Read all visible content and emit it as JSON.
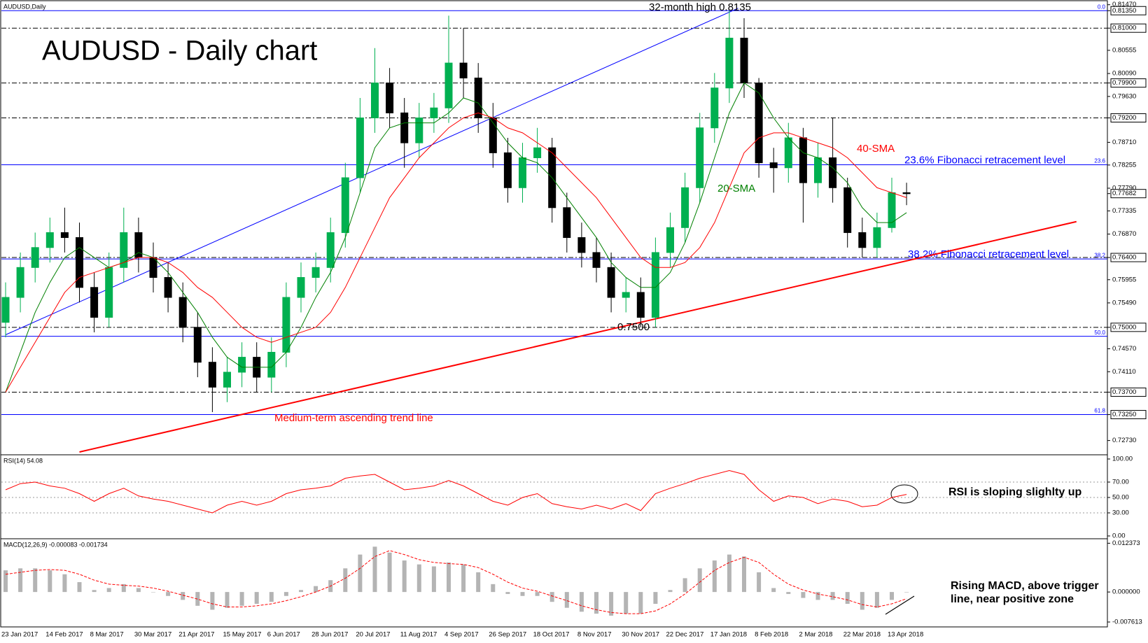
{
  "chart_data": [
    {
      "type": "candlestick",
      "label": "AUDUSD,Daily",
      "title": "AUDUSD - Daily chart",
      "categories": [
        "23 Jan 2017",
        null,
        null,
        "14 Feb 2017",
        null,
        null,
        "8 Mar 2017",
        null,
        null,
        "30 Mar 2017",
        null,
        null,
        "21 Apr 2017",
        null,
        null,
        "15 May 2017",
        null,
        null,
        "6 Jun 2017",
        null,
        null,
        "28 Jun 2017",
        null,
        null,
        "20 Jul 2017",
        null,
        null,
        "11 Aug 2017",
        null,
        null,
        "4 Sep 2017",
        null,
        null,
        "26 Sep 2017",
        null,
        null,
        "18 Oct 2017",
        null,
        null,
        "8 Nov 2017",
        null,
        null,
        "30 Nov 2017",
        null,
        null,
        "22 Dec 2017",
        null,
        null,
        "17 Jan 2018",
        null,
        null,
        "8 Feb 2018",
        null,
        null,
        "2 Mar 2018",
        null,
        null,
        "22 Mar 2018",
        null,
        null,
        "13 Apr 2018",
        null
      ],
      "open": [
        0.751,
        0.756,
        0.762,
        0.766,
        0.769,
        0.768,
        0.758,
        0.752,
        0.762,
        0.769,
        0.764,
        0.76,
        0.756,
        0.75,
        0.743,
        0.738,
        0.741,
        0.744,
        0.74,
        0.745,
        0.756,
        0.76,
        0.762,
        0.769,
        0.78,
        0.792,
        0.799,
        0.793,
        0.787,
        0.792,
        0.794,
        0.803,
        0.8,
        0.792,
        0.785,
        0.778,
        0.784,
        0.786,
        0.774,
        0.768,
        0.765,
        0.762,
        0.756,
        0.757,
        0.752,
        0.765,
        0.77,
        0.778,
        0.79,
        0.798,
        0.808,
        0.799,
        0.783,
        0.782,
        0.788,
        0.779,
        0.784,
        0.778,
        0.769,
        0.766,
        0.77,
        0.777
      ],
      "high": [
        0.759,
        0.765,
        0.769,
        0.772,
        0.774,
        0.771,
        0.761,
        0.765,
        0.774,
        0.772,
        0.767,
        0.763,
        0.759,
        0.753,
        0.746,
        0.744,
        0.747,
        0.747,
        0.748,
        0.759,
        0.763,
        0.765,
        0.772,
        0.783,
        0.796,
        0.806,
        0.802,
        0.796,
        0.795,
        0.797,
        0.8125,
        0.81,
        0.803,
        0.795,
        0.788,
        0.787,
        0.79,
        0.788,
        0.777,
        0.771,
        0.768,
        0.765,
        0.76,
        0.76,
        0.768,
        0.773,
        0.781,
        0.793,
        0.801,
        0.8135,
        0.812,
        0.8,
        0.786,
        0.791,
        0.79,
        0.787,
        0.792,
        0.78,
        0.772,
        0.773,
        0.78,
        0.779
      ],
      "low": [
        0.748,
        0.753,
        0.759,
        0.763,
        0.765,
        0.755,
        0.749,
        0.75,
        0.759,
        0.761,
        0.757,
        0.753,
        0.747,
        0.74,
        0.733,
        0.735,
        0.738,
        0.737,
        0.737,
        0.742,
        0.753,
        0.757,
        0.759,
        0.766,
        0.777,
        0.789,
        0.79,
        0.782,
        0.784,
        0.789,
        0.791,
        0.796,
        0.789,
        0.782,
        0.775,
        0.775,
        0.781,
        0.771,
        0.765,
        0.762,
        0.759,
        0.753,
        0.753,
        0.75,
        0.75,
        0.762,
        0.767,
        0.775,
        0.787,
        0.795,
        0.796,
        0.78,
        0.777,
        0.779,
        0.771,
        0.776,
        0.775,
        0.766,
        0.764,
        0.764,
        0.769,
        0.7745
      ],
      "close": [
        0.756,
        0.762,
        0.766,
        0.769,
        0.768,
        0.758,
        0.752,
        0.762,
        0.769,
        0.764,
        0.76,
        0.756,
        0.75,
        0.743,
        0.738,
        0.741,
        0.744,
        0.74,
        0.745,
        0.756,
        0.76,
        0.762,
        0.769,
        0.78,
        0.792,
        0.799,
        0.793,
        0.787,
        0.792,
        0.794,
        0.803,
        0.8,
        0.792,
        0.785,
        0.778,
        0.784,
        0.786,
        0.774,
        0.768,
        0.765,
        0.762,
        0.756,
        0.757,
        0.752,
        0.765,
        0.77,
        0.778,
        0.79,
        0.798,
        0.808,
        0.799,
        0.783,
        0.782,
        0.788,
        0.779,
        0.784,
        0.778,
        0.769,
        0.766,
        0.77,
        0.777,
        0.7768
      ],
      "up_color": "#00b050",
      "down_color": "#000000",
      "series": [
        {
          "name": "20-SMA",
          "color": "#008000",
          "values": [
            0.737,
            0.745,
            0.753,
            0.759,
            0.764,
            0.766,
            0.764,
            0.762,
            0.763,
            0.765,
            0.764,
            0.761,
            0.757,
            0.753,
            0.748,
            0.744,
            0.742,
            0.742,
            0.742,
            0.745,
            0.75,
            0.756,
            0.761,
            0.768,
            0.777,
            0.786,
            0.79,
            0.791,
            0.791,
            0.791,
            0.793,
            0.796,
            0.795,
            0.791,
            0.787,
            0.784,
            0.783,
            0.78,
            0.776,
            0.772,
            0.768,
            0.763,
            0.76,
            0.758,
            0.758,
            0.761,
            0.767,
            0.775,
            0.784,
            0.793,
            0.799,
            0.797,
            0.792,
            0.788,
            0.785,
            0.784,
            0.782,
            0.779,
            0.774,
            0.771,
            0.771,
            0.773
          ]
        },
        {
          "name": "40-SMA",
          "color": "#ff0000",
          "values": [
            0.737,
            0.742,
            0.747,
            0.752,
            0.757,
            0.76,
            0.761,
            0.762,
            0.763,
            0.764,
            0.764,
            0.763,
            0.761,
            0.758,
            0.756,
            0.753,
            0.75,
            0.748,
            0.747,
            0.748,
            0.749,
            0.75,
            0.753,
            0.758,
            0.764,
            0.77,
            0.776,
            0.78,
            0.784,
            0.787,
            0.79,
            0.792,
            0.793,
            0.792,
            0.79,
            0.789,
            0.787,
            0.785,
            0.782,
            0.779,
            0.776,
            0.772,
            0.768,
            0.764,
            0.762,
            0.762,
            0.763,
            0.766,
            0.771,
            0.778,
            0.785,
            0.788,
            0.789,
            0.789,
            0.788,
            0.787,
            0.786,
            0.784,
            0.781,
            0.778,
            0.777,
            0.776
          ]
        }
      ],
      "ylim": [
        0.725,
        0.8148
      ],
      "yticks": [
        {
          "value": 0.8147,
          "label": "0.81470"
        },
        {
          "value": 0.8135,
          "label": "0.81350",
          "boxed": true
        },
        {
          "value": 0.81,
          "label": "0.81000",
          "boxed": true
        },
        {
          "value": 0.80555,
          "label": "0.80555"
        },
        {
          "value": 0.8009,
          "label": "0.80090"
        },
        {
          "value": 0.799,
          "label": "0.79900",
          "boxed": true
        },
        {
          "value": 0.7963,
          "label": "0.79630"
        },
        {
          "value": 0.792,
          "label": "0.79200",
          "boxed": true
        },
        {
          "value": 0.7871,
          "label": "0.78710"
        },
        {
          "value": 0.78255,
          "label": "0.78255"
        },
        {
          "value": 0.7779,
          "label": "0.77790"
        },
        {
          "value": 0.77682,
          "label": "0.77682",
          "boxed": true
        },
        {
          "value": 0.77335,
          "label": "0.77335"
        },
        {
          "value": 0.7687,
          "label": "0.76870"
        },
        {
          "value": 0.764,
          "label": "0.76400",
          "boxed": true
        },
        {
          "value": 0.75955,
          "label": "0.75955"
        },
        {
          "value": 0.7549,
          "label": "0.75490"
        },
        {
          "value": 0.75,
          "label": "0.75000",
          "boxed": true
        },
        {
          "value": 0.7457,
          "label": "0.74570"
        },
        {
          "value": 0.7411,
          "label": "0.74110"
        },
        {
          "value": 0.737,
          "label": "0.73700",
          "boxed": true
        },
        {
          "value": 0.7325,
          "label": "0.73250",
          "boxed": true
        },
        {
          "value": 0.7273,
          "label": "0.72730"
        }
      ],
      "levels": [
        0.81,
        0.799,
        0.792,
        0.764,
        0.75,
        0.737,
        0.7325
      ],
      "fibonacci": [
        {
          "tag": "0.0",
          "value": 0.8135
        },
        {
          "tag": "23.6",
          "value": 0.7826,
          "text": "23.6% Fibonacci retracement level"
        },
        {
          "tag": "38.2",
          "value": 0.7637,
          "text": "38.2% Fibonacci retracement level"
        },
        {
          "tag": "50.0",
          "value": 0.7482
        },
        {
          "tag": "61.8",
          "value": 0.7325
        }
      ],
      "fib_color": "#0000ff",
      "trend_lines": [
        {
          "label": "Medium-term ascending trend line",
          "color": "#ff0000",
          "x": [
            5,
            72.5
          ],
          "y": [
            0.725,
            0.7712
          ]
        },
        {
          "color": "#0000ff",
          "x": [
            0,
            49.6
          ],
          "y": [
            0.7485,
            0.814
          ]
        }
      ],
      "annotations": {
        "high": "32-month high 0.8135",
        "low": "0.7500"
      }
    },
    {
      "type": "line",
      "label": "RSI(14) 54.08",
      "note": "RSI is sloping slighlty up",
      "color": "#ff0000",
      "values": [
        60,
        68,
        70,
        65,
        62,
        55,
        45,
        55,
        62,
        52,
        48,
        45,
        40,
        35,
        30,
        40,
        45,
        40,
        45,
        55,
        60,
        62,
        65,
        75,
        78,
        80,
        70,
        60,
        62,
        65,
        72,
        65,
        55,
        45,
        40,
        50,
        55,
        42,
        38,
        35,
        40,
        35,
        42,
        33,
        55,
        62,
        68,
        75,
        80,
        85,
        80,
        60,
        45,
        52,
        50,
        42,
        48,
        45,
        38,
        40,
        50,
        54
      ],
      "ylim": [
        0,
        100
      ],
      "yticks": [
        {
          "value": 100,
          "label": "100.00"
        },
        {
          "value": 70,
          "label": "70.00"
        },
        {
          "value": 50,
          "label": "50.00"
        },
        {
          "value": 30,
          "label": "30.00"
        },
        {
          "value": 0,
          "label": "0.00"
        }
      ],
      "grid": true
    },
    {
      "type": "macd",
      "label": "MACD(12,26,9) -0.000083 -0.001734",
      "note": "Rising MACD, above trigger line, near positive zone",
      "histogram": {
        "color": "#b4b4b4",
        "values": [
          0.0055,
          0.006,
          0.006,
          0.0055,
          0.0045,
          0.0025,
          0.0005,
          0.001,
          0.002,
          0.001,
          0.0,
          -0.001,
          -0.002,
          -0.0035,
          -0.0045,
          -0.004,
          -0.0035,
          -0.003,
          -0.0025,
          -0.001,
          0.0005,
          0.0015,
          0.003,
          0.006,
          0.0095,
          0.0115,
          0.01,
          0.008,
          0.007,
          0.0065,
          0.0075,
          0.007,
          0.005,
          0.002,
          -0.0005,
          -0.001,
          -0.001,
          -0.0025,
          -0.004,
          -0.005,
          -0.0055,
          -0.006,
          -0.0055,
          -0.0055,
          -0.003,
          0.0005,
          0.0035,
          0.006,
          0.008,
          0.0095,
          0.009,
          0.005,
          0.001,
          -0.0005,
          -0.0015,
          -0.002,
          -0.002,
          -0.003,
          -0.0045,
          -0.004,
          -0.002,
          -0.0001
        ]
      },
      "signal": {
        "color": "#ff0000",
        "values": [
          0.0045,
          0.005,
          0.0055,
          0.0057,
          0.0055,
          0.0045,
          0.003,
          0.002,
          0.0017,
          0.0015,
          0.001,
          0.0002,
          -0.0008,
          -0.0018,
          -0.003,
          -0.0038,
          -0.0038,
          -0.0035,
          -0.003,
          -0.0022,
          -0.0012,
          0.0,
          0.0015,
          0.0035,
          0.006,
          0.009,
          0.0105,
          0.0095,
          0.0082,
          0.0075,
          0.0072,
          0.007,
          0.0062,
          0.0045,
          0.0025,
          0.001,
          0.0002,
          -0.001,
          -0.0022,
          -0.0035,
          -0.0045,
          -0.0052,
          -0.0055,
          -0.0055,
          -0.0048,
          -0.003,
          -0.0005,
          0.0025,
          0.0055,
          0.0075,
          0.0088,
          0.0075,
          0.0045,
          0.002,
          0.0005,
          -0.0005,
          -0.0012,
          -0.002,
          -0.0032,
          -0.0038,
          -0.003,
          -0.0017
        ]
      },
      "ylim": [
        -0.0085,
        0.0128
      ],
      "yticks": [
        {
          "value": 0.012373,
          "label": "0.012373"
        },
        {
          "value": 0,
          "label": "0.000000"
        },
        {
          "value": -0.007613,
          "label": "-0.007613"
        }
      ]
    }
  ]
}
